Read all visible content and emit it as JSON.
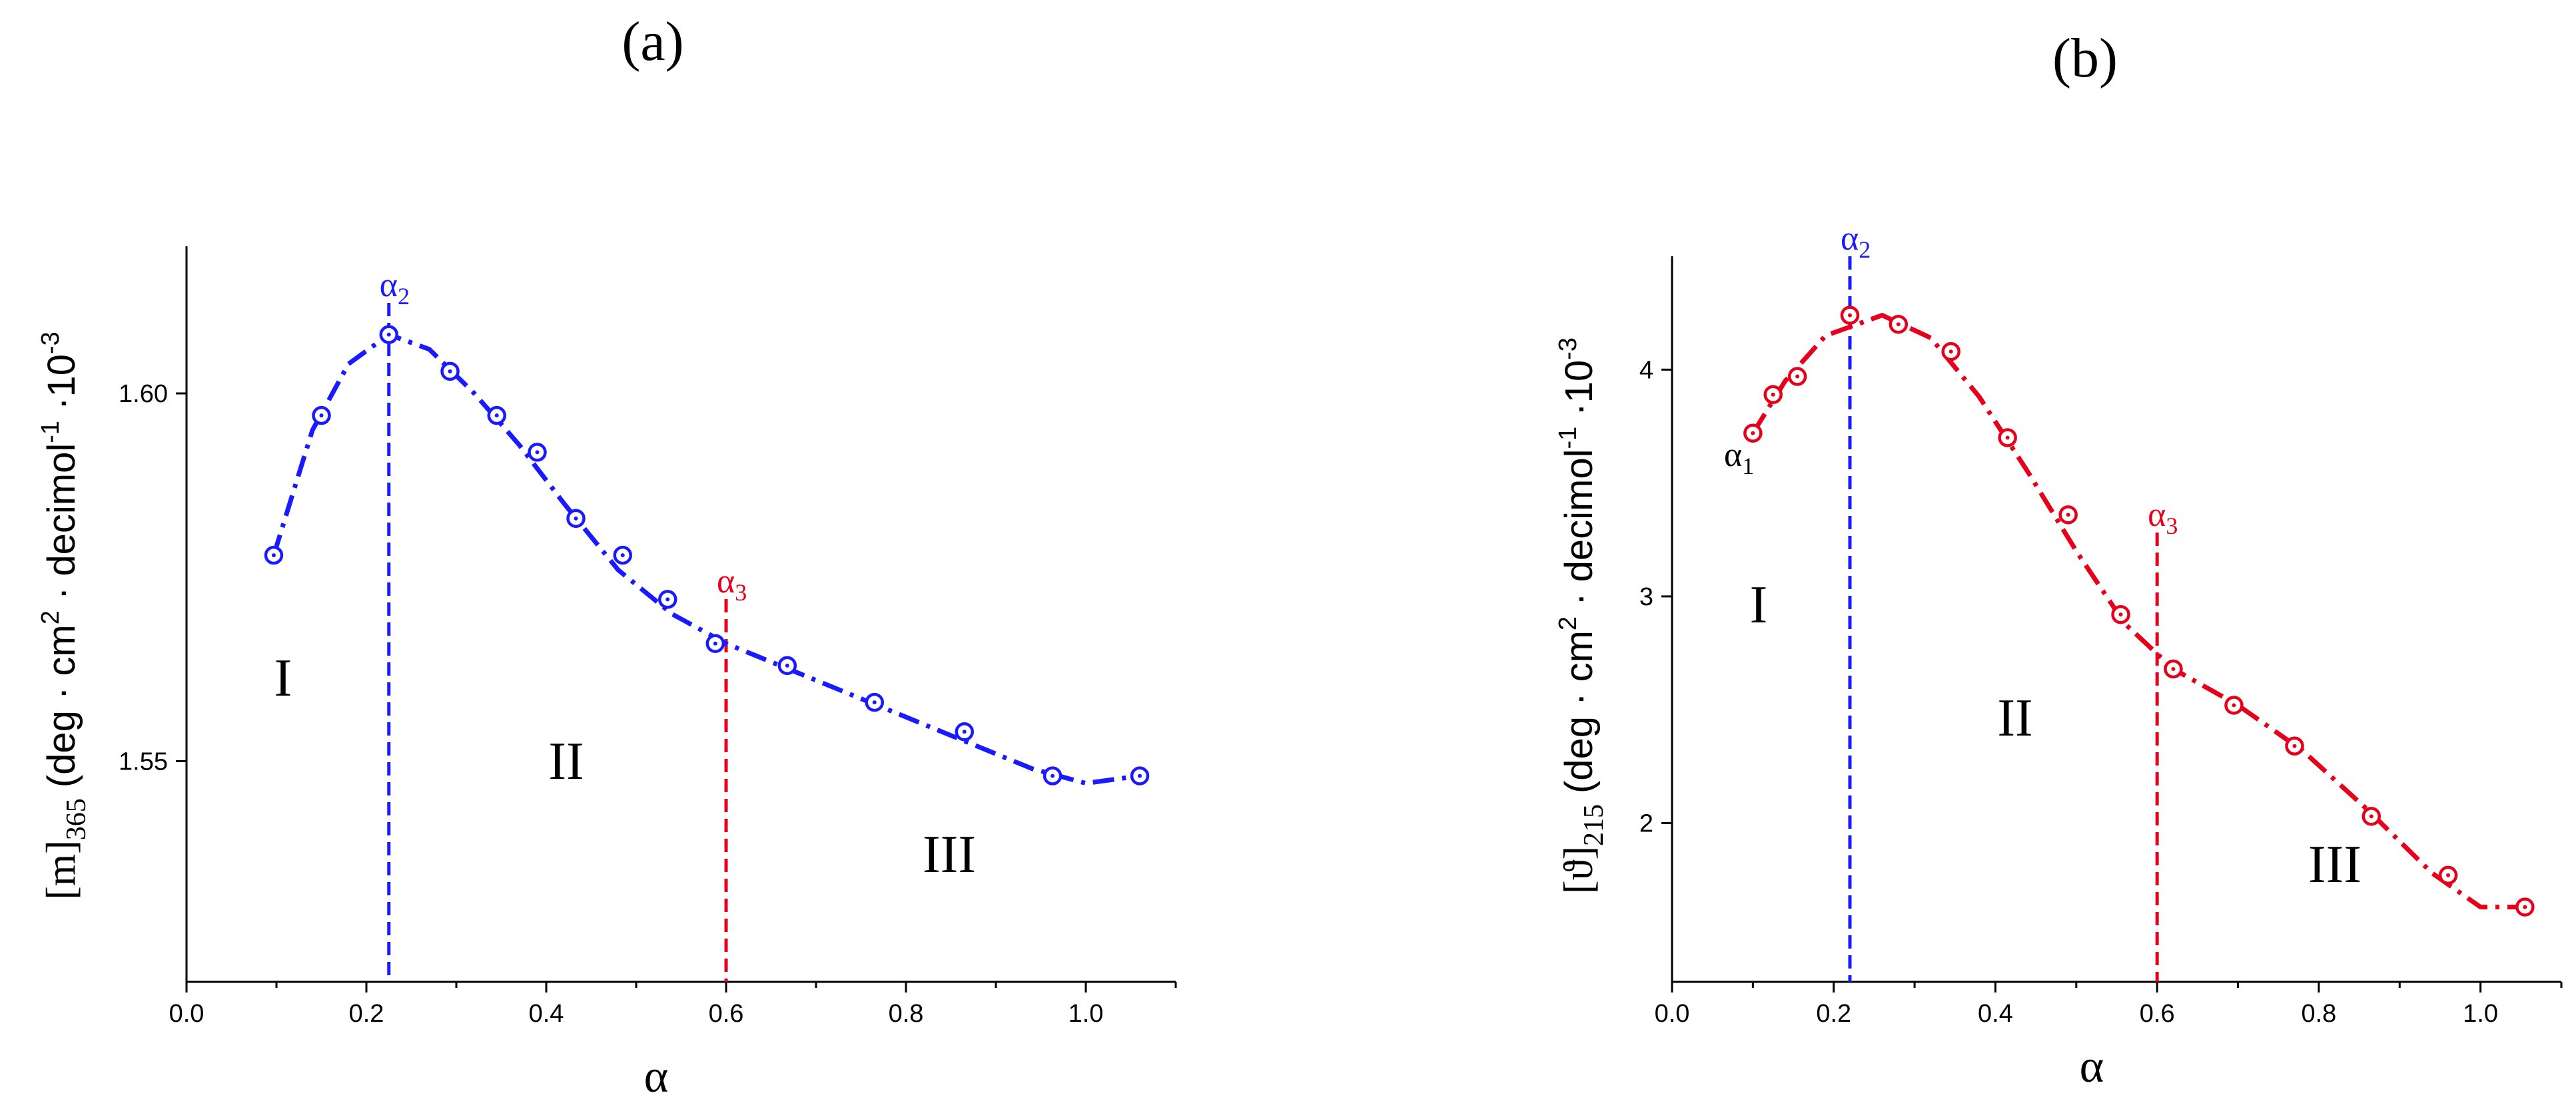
{
  "chart_data": [
    {
      "type": "scatter",
      "panel_label": "(a)",
      "xlabel": "α",
      "ylabel_main": "[m]",
      "ylabel_sub": "365",
      "ylabel_rest": "(deg · cm",
      "ylabel_sup2": "2",
      "ylabel_mid": " · decimol",
      "ylabel_sup_neg1": "-1",
      "ylabel_tail": " ·10",
      "ylabel_sup_neg3": "-3",
      "xlim": [
        0.0,
        1.1
      ],
      "ylim": [
        1.52,
        1.62
      ],
      "xticks": [
        "0.0",
        "0.2",
        "0.4",
        "0.6",
        "0.8",
        "1.0"
      ],
      "yticks": [
        "1.55",
        "1.60"
      ],
      "series": [
        {
          "name": "[m]365",
          "color": "#1a1aff",
          "x": [
            0.097,
            0.15,
            0.225,
            0.293,
            0.345,
            0.39,
            0.433,
            0.485,
            0.535,
            0.588,
            0.668,
            0.765,
            0.865,
            0.963,
            1.06
          ],
          "y": [
            1.578,
            1.597,
            1.608,
            1.603,
            1.597,
            1.592,
            1.583,
            1.578,
            1.572,
            1.566,
            1.563,
            1.558,
            1.554,
            1.548,
            1.548
          ]
        }
      ],
      "fit_line": {
        "x": [
          0.097,
          0.14,
          0.18,
          0.225,
          0.27,
          0.32,
          0.37,
          0.42,
          0.48,
          0.54,
          0.6,
          0.68,
          0.76,
          0.86,
          0.94,
          1.0,
          1.06
        ],
        "y": [
          1.578,
          1.595,
          1.604,
          1.608,
          1.606,
          1.6,
          1.593,
          1.585,
          1.576,
          1.57,
          1.566,
          1.562,
          1.558,
          1.553,
          1.549,
          1.547,
          1.548
        ]
      },
      "vlines": [
        {
          "x": 0.225,
          "label": "α",
          "sub": "2",
          "color": "#1a1aff"
        },
        {
          "x": 0.6,
          "label": "α",
          "sub": "3",
          "color": "#e6001a"
        }
      ],
      "regions": [
        "I",
        "II",
        "III"
      ]
    },
    {
      "type": "scatter",
      "panel_label": "(b)",
      "xlabel": "α",
      "ylabel_main": "[ϑ]",
      "ylabel_sub": "215",
      "ylabel_rest": "(deg · cm",
      "ylabel_sup2": "2",
      "ylabel_mid": " · decimol",
      "ylabel_sup_neg1": "-1",
      "ylabel_tail": " ·10",
      "ylabel_sup_neg3": "-3",
      "xlim": [
        0.0,
        1.1
      ],
      "ylim": [
        1.3,
        4.5
      ],
      "xticks": [
        "0.0",
        "0.2",
        "0.4",
        "0.6",
        "0.8",
        "1.0"
      ],
      "yticks": [
        "2",
        "3",
        "4"
      ],
      "series": [
        {
          "name": "[ϑ]215",
          "color": "#e6001a",
          "x": [
            0.1,
            0.125,
            0.155,
            0.22,
            0.28,
            0.345,
            0.415,
            0.49,
            0.555,
            0.62,
            0.695,
            0.77,
            0.865,
            0.96,
            1.055
          ],
          "y": [
            3.72,
            3.89,
            3.97,
            4.24,
            4.2,
            4.08,
            3.7,
            3.36,
            2.92,
            2.68,
            2.52,
            2.34,
            2.03,
            1.77,
            1.63
          ]
        }
      ],
      "fit_line": {
        "x": [
          0.1,
          0.14,
          0.19,
          0.26,
          0.32,
          0.38,
          0.44,
          0.5,
          0.56,
          0.62,
          0.7,
          0.78,
          0.86,
          0.94,
          1.0,
          1.055
        ],
        "y": [
          3.72,
          3.95,
          4.15,
          4.24,
          4.14,
          3.88,
          3.55,
          3.2,
          2.88,
          2.68,
          2.52,
          2.32,
          2.06,
          1.78,
          1.63,
          1.63
        ]
      },
      "vlines": [
        {
          "x": 0.22,
          "label": "α",
          "sub": "2",
          "color": "#1a1aff"
        },
        {
          "x": 0.6,
          "label": "α",
          "sub": "3",
          "color": "#e6001a"
        }
      ],
      "point_annotation": {
        "label": "α",
        "sub": "1"
      },
      "regions": [
        "I",
        "II",
        "III"
      ]
    }
  ]
}
